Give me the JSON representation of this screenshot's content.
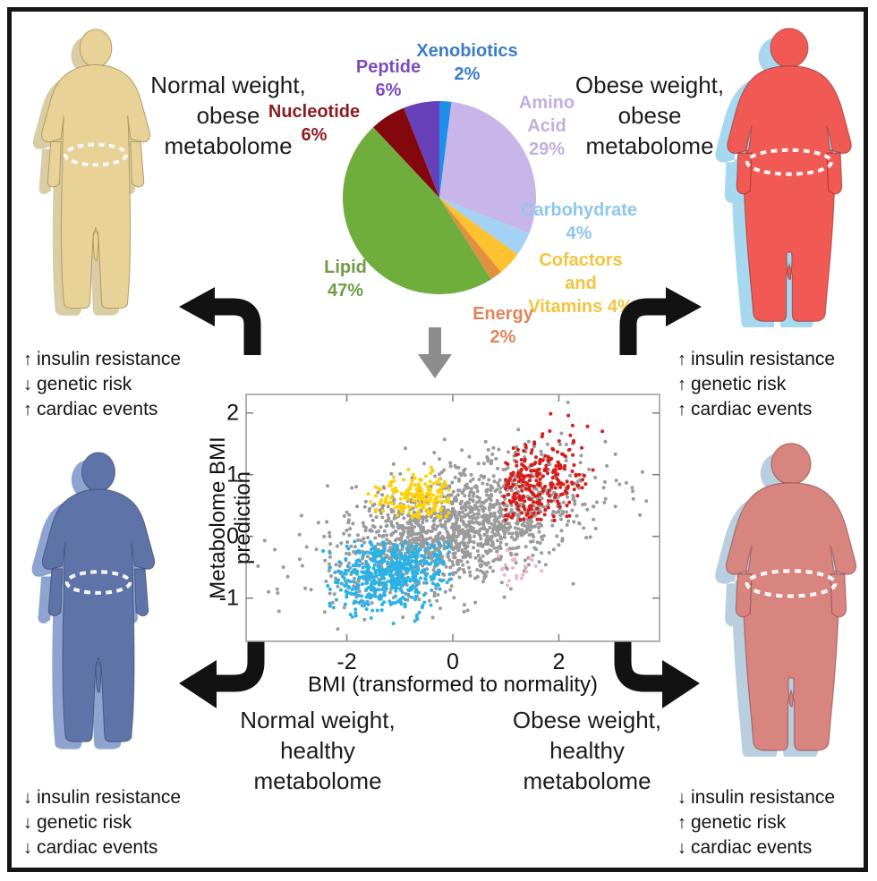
{
  "figure": {
    "quadrants": {
      "top_left": {
        "label": "Normal weight, obese metabolome",
        "effects": [
          {
            "glyph": "↑",
            "text": "insulin resistance"
          },
          {
            "glyph": "↓",
            "text": "genetic risk"
          },
          {
            "glyph": "↑",
            "text": "cardiac events"
          }
        ]
      },
      "top_right": {
        "label": "Obese weight, obese metabolome",
        "effects": [
          {
            "glyph": "↑",
            "text": "insulin resistance"
          },
          {
            "glyph": "↑",
            "text": "genetic risk"
          },
          {
            "glyph": "↑",
            "text": "cardiac events"
          }
        ]
      },
      "bottom_left": {
        "label": "Normal weight, healthy metabolome",
        "effects": [
          {
            "glyph": "↓",
            "text": "insulin resistance"
          },
          {
            "glyph": "↓",
            "text": "genetic risk"
          },
          {
            "glyph": "↓",
            "text": "cardiac events"
          }
        ]
      },
      "bottom_right": {
        "label": "Obese weight, healthy metabolome",
        "effects": [
          {
            "glyph": "↓",
            "text": "insulin resistance"
          },
          {
            "glyph": "↑",
            "text": "genetic risk"
          },
          {
            "glyph": "↓",
            "text": "cardiac events"
          }
        ]
      }
    },
    "silhouette_colors": {
      "top_left": {
        "body": "#e8d297",
        "shadow": "#d9cda6"
      },
      "top_right": {
        "body": "#f15a54",
        "shadow": "#a6d9f0"
      },
      "bottom_left": {
        "body": "#5e74a8",
        "shadow": "#8ea3cf"
      },
      "bottom_right": {
        "body": "#d8847f",
        "shadow": "#b9cfdf"
      }
    }
  },
  "chart_data": [
    {
      "type": "pie",
      "direction": "clockwise",
      "start_angle_deg": 0,
      "slices": [
        {
          "label": "Xenobiotics",
          "pct": 2,
          "pct_label": "2%",
          "color": "#1f8fea",
          "label_color": "#3a7cc9"
        },
        {
          "label": "Amino Acid",
          "pct": 29,
          "pct_label": "29%",
          "color": "#c8b6e8",
          "label_color": "#c2afe0"
        },
        {
          "label": "Carbohydrate",
          "pct": 4,
          "pct_label": "4%",
          "color": "#a4d2f4",
          "label_color": "#8ec6ee"
        },
        {
          "label": "Cofactors and Vitamins",
          "pct": 4,
          "pct_label": "4%",
          "color": "#fdc22f",
          "label_color": "#f5c33c"
        },
        {
          "label": "Energy",
          "pct": 2,
          "pct_label": "2%",
          "color": "#e0913f",
          "label_color": "#e0855a"
        },
        {
          "label": "Lipid",
          "pct": 47,
          "pct_label": "47%",
          "color": "#6fae3d",
          "label_color": "#6f9d43"
        },
        {
          "label": "Nucleotide",
          "pct": 6,
          "pct_label": "6%",
          "color": "#83080e",
          "label_color": "#8e1c20"
        },
        {
          "label": "Peptide",
          "pct": 6,
          "pct_label": "6%",
          "color": "#6840ba",
          "label_color": "#7a4cc0"
        }
      ]
    },
    {
      "type": "scatter",
      "xlabel": "BMI (transformed to normality)",
      "ylabel": "Metabolome BMI prediction",
      "xlim": [
        -3.9,
        3.9
      ],
      "ylim": [
        -1.7,
        2.3
      ],
      "xticks": [
        -2,
        0,
        2
      ],
      "yticks": [
        -1,
        0,
        1,
        2
      ],
      "grid": false,
      "seed": 7,
      "clusters": [
        {
          "name": "all-participants",
          "color": "#9b9b9b",
          "n": 1600,
          "cx": 0.1,
          "cy": 0.18,
          "sx": 1.15,
          "sy": 0.52,
          "corr": 0.5,
          "xrange": [
            -3.8,
            3.8
          ],
          "yrange": [
            -1.65,
            2.25
          ]
        },
        {
          "name": "normal-weight-healthy-metabolome",
          "color": "#2ab2e6",
          "n": 520,
          "cx": -1.1,
          "cy": -0.55,
          "sx": 0.6,
          "sy": 0.33,
          "corr": 0.2,
          "xrange": [
            -2.45,
            -0.05
          ],
          "yrange": [
            -1.5,
            -0.08
          ]
        },
        {
          "name": "normal-weight-obese-metabolome",
          "color": "#ffd104",
          "n": 175,
          "cx": -0.7,
          "cy": 0.62,
          "sx": 0.42,
          "sy": 0.24,
          "corr": 0,
          "xrange": [
            -1.7,
            -0.05
          ],
          "yrange": [
            0.3,
            1.15
          ]
        },
        {
          "name": "obese-weight-obese-metabolome",
          "color": "#da1b18",
          "n": 280,
          "cx": 1.55,
          "cy": 0.85,
          "sx": 0.45,
          "sy": 0.38,
          "corr": 0.3,
          "xrange": [
            0.95,
            3.3
          ],
          "yrange": [
            0.25,
            2.0
          ]
        },
        {
          "name": "obese-weight-healthy-metabolome",
          "color": "#f2b3c5",
          "n": 22,
          "cx": 1.15,
          "cy": -0.45,
          "sx": 0.3,
          "sy": 0.2,
          "corr": 0,
          "xrange": [
            0.8,
            1.8
          ],
          "yrange": [
            -0.85,
            -0.15
          ]
        }
      ]
    }
  ]
}
